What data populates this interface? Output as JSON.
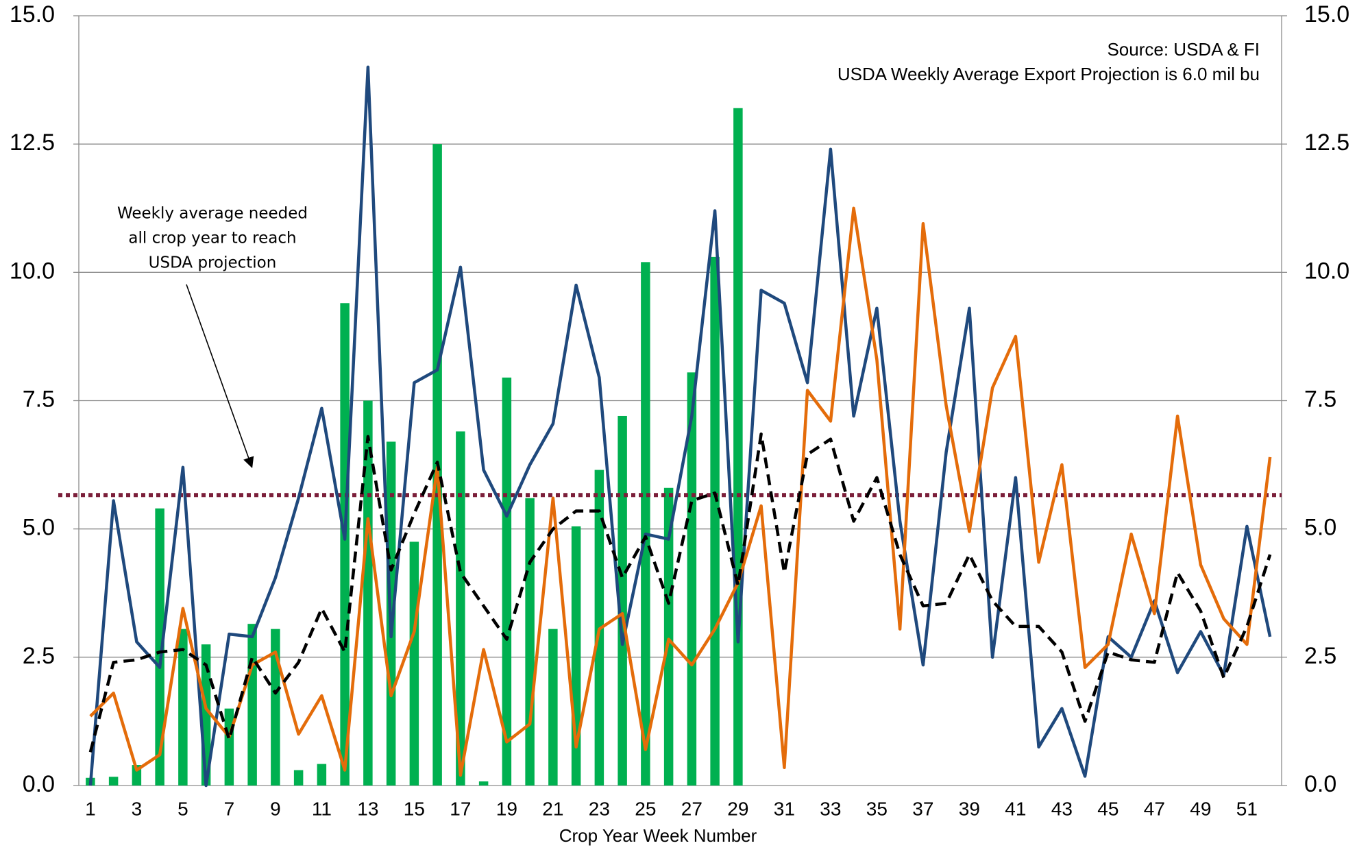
{
  "chart_data": {
    "type": "combo",
    "annotations": [
      "Source: USDA & FI",
      "USDA Weekly Average Export Projection is 6.0 mil bu"
    ],
    "callout": [
      "Weekly average needed",
      "all crop year to reach",
      "USDA projection"
    ],
    "xlabel": "Crop Year Week Number",
    "categories": [
      "1",
      null,
      "3",
      null,
      "5",
      null,
      "7",
      null,
      "9",
      null,
      "11",
      null,
      "13",
      null,
      "15",
      null,
      "17",
      null,
      "19",
      null,
      "21",
      null,
      "23",
      null,
      "25",
      null,
      "27",
      null,
      "29",
      null,
      "31",
      null,
      "33",
      null,
      "35",
      null,
      "37",
      null,
      "39",
      null,
      "41",
      null,
      "43",
      null,
      "45",
      null,
      "47",
      null,
      "49",
      null,
      "51",
      null
    ],
    "series": [
      {
        "type": "bar",
        "color": "#00b050",
        "values": [
          0.15,
          0.17,
          0.4,
          5.4,
          3.05,
          2.75,
          1.5,
          3.15,
          3.05,
          0.3,
          0.42,
          9.4,
          7.5,
          6.7,
          4.75,
          12.5,
          6.9,
          0.08,
          7.95,
          5.6,
          3.05,
          5.05,
          6.15,
          7.2,
          10.2,
          5.8,
          8.05,
          10.3,
          13.2,
          null,
          null,
          null,
          null,
          null,
          null,
          null,
          null,
          null,
          null,
          null,
          null,
          null,
          null,
          null,
          null,
          null,
          null,
          null,
          null,
          null,
          null,
          null
        ]
      },
      {
        "type": "line",
        "color": "#1f497d",
        "dash": "solid",
        "values": [
          0.0,
          5.55,
          2.8,
          2.3,
          6.2,
          0.0,
          2.95,
          2.9,
          4.05,
          5.6,
          7.35,
          4.8,
          14.0,
          2.9,
          7.85,
          8.1,
          10.1,
          6.15,
          5.25,
          6.25,
          7.05,
          9.75,
          7.95,
          2.75,
          4.9,
          4.8,
          7.2,
          11.2,
          2.8,
          9.65,
          9.4,
          7.85,
          12.4,
          7.2,
          9.3,
          5.15,
          2.35,
          6.5,
          9.3,
          2.5,
          6.0,
          0.75,
          1.5,
          0.18,
          2.9,
          2.5,
          3.6,
          2.2,
          3.0,
          2.15,
          5.05,
          2.9
        ]
      },
      {
        "type": "line",
        "color": "#e46c0a",
        "dash": "solid",
        "values": [
          1.35,
          1.8,
          0.3,
          0.6,
          3.45,
          1.5,
          0.95,
          2.35,
          2.6,
          1.0,
          1.75,
          0.3,
          5.2,
          1.75,
          3.0,
          6.2,
          0.2,
          2.65,
          0.85,
          1.2,
          5.6,
          0.75,
          3.05,
          3.35,
          0.7,
          2.85,
          2.35,
          3.05,
          3.95,
          5.45,
          0.35,
          7.7,
          7.1,
          11.25,
          8.3,
          3.05,
          10.95,
          7.4,
          4.95,
          7.75,
          8.75,
          4.35,
          6.25,
          2.3,
          2.75,
          4.9,
          3.35,
          7.2,
          4.3,
          3.25,
          2.75,
          6.4
        ]
      },
      {
        "type": "line",
        "color": "#000000",
        "dash": "dashed",
        "values": [
          0.65,
          2.4,
          2.45,
          2.6,
          2.65,
          2.35,
          0.9,
          2.5,
          1.8,
          2.4,
          3.45,
          2.6,
          6.8,
          4.2,
          5.3,
          6.3,
          4.15,
          3.5,
          2.85,
          4.35,
          5.0,
          5.35,
          5.35,
          4.05,
          4.85,
          3.55,
          5.55,
          5.7,
          3.9,
          6.85,
          4.15,
          6.45,
          6.75,
          5.15,
          6.0,
          4.5,
          3.5,
          3.55,
          4.5,
          3.6,
          3.1,
          3.1,
          2.6,
          1.25,
          2.6,
          2.45,
          2.4,
          4.15,
          3.4,
          2.1,
          3.1,
          4.5
        ]
      }
    ],
    "reference_line": {
      "value": 5.66,
      "color": "#7b1f3a",
      "style": "dotted"
    },
    "ylim": [
      0,
      15
    ],
    "yticks": [
      {
        "value": 0,
        "label": "0.0"
      },
      2.5,
      {
        "value": 5,
        "label": "5.0"
      },
      7.5,
      {
        "value": 10,
        "label": "10.0"
      },
      12.5,
      {
        "value": 15,
        "label": "15.0"
      }
    ],
    "y2lim": [
      0,
      15
    ],
    "y2ticks": [
      {
        "value": 0,
        "label": "0.0"
      },
      2.5,
      {
        "value": 5,
        "label": "5.0"
      },
      7.5,
      {
        "value": 10,
        "label": "10.0"
      },
      12.5,
      {
        "value": 15,
        "label": "15.0"
      }
    ],
    "grid": true
  }
}
